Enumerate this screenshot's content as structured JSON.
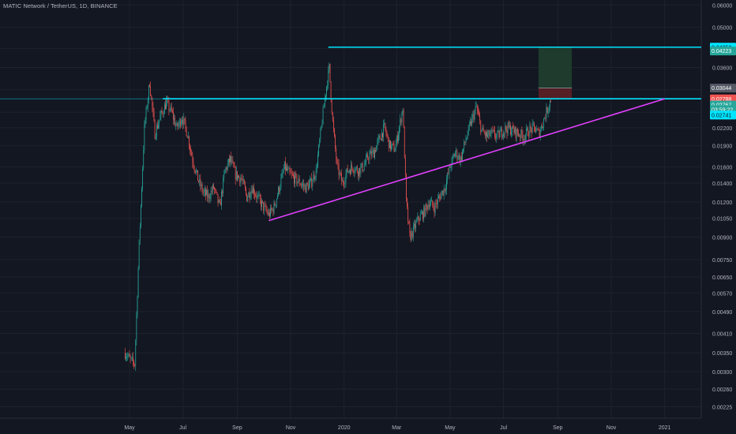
{
  "header": {
    "title": "MATIC Network / TetherUS, 1D, BINANCE"
  },
  "colors": {
    "background": "#131722",
    "grid": "#1e222d",
    "axis_text": "#b2b5be",
    "up": "#26a69a",
    "down": "#ef5350",
    "cyan_line": "#00e5ff",
    "magenta_line": "#e040fb",
    "target_zone": "#1f3d2e",
    "stop_zone": "#5a1f26"
  },
  "chart_data": {
    "type": "candlestick",
    "title": "MATIC Network / TetherUS, 1D, BINANCE",
    "scale": "log",
    "grid": true,
    "x_tick_labels": [
      "May",
      "Jul",
      "Sep",
      "Nov",
      "2020",
      "Mar",
      "May",
      "Jul",
      "Sep",
      "Nov",
      "2021"
    ],
    "y_tick_labels": [
      "0.06000",
      "0.05000",
      "0.04200",
      "0.03600",
      "0.03000",
      "0.02500",
      "0.02200",
      "0.01900",
      "0.01600",
      "0.01400",
      "0.01200",
      "0.01050",
      "0.00900",
      "0.00750",
      "0.00650",
      "0.00570",
      "0.00490",
      "0.00410",
      "0.00350",
      "0.00300",
      "0.00260",
      "0.00225"
    ],
    "y_ticks": [
      0.06,
      0.05,
      0.042,
      0.036,
      0.03,
      0.025,
      0.022,
      0.019,
      0.016,
      0.014,
      0.012,
      0.0105,
      0.009,
      0.0075,
      0.0065,
      0.0057,
      0.0049,
      0.0041,
      0.0035,
      0.003,
      0.0026,
      0.00225
    ],
    "ylim": [
      0.00205,
      0.0625
    ],
    "x_range": [
      "2019-04-22",
      "2021-02-28"
    ],
    "price_path": [
      [
        "2019-04-26",
        0.0035
      ],
      [
        "2019-05-02",
        0.0033
      ],
      [
        "2019-05-07",
        0.0032
      ],
      [
        "2019-05-12",
        0.0085
      ],
      [
        "2019-05-18",
        0.022
      ],
      [
        "2019-05-24",
        0.032
      ],
      [
        "2019-05-30",
        0.021
      ],
      [
        "2019-06-05",
        0.024
      ],
      [
        "2019-06-12",
        0.027
      ],
      [
        "2019-06-18",
        0.025
      ],
      [
        "2019-06-24",
        0.022
      ],
      [
        "2019-06-30",
        0.024
      ],
      [
        "2019-07-06",
        0.021
      ],
      [
        "2019-07-12",
        0.017
      ],
      [
        "2019-07-18",
        0.0145
      ],
      [
        "2019-07-24",
        0.013
      ],
      [
        "2019-07-30",
        0.0125
      ],
      [
        "2019-08-05",
        0.0135
      ],
      [
        "2019-08-12",
        0.0115
      ],
      [
        "2019-08-18",
        0.0155
      ],
      [
        "2019-08-24",
        0.017
      ],
      [
        "2019-08-30",
        0.015
      ],
      [
        "2019-09-06",
        0.0145
      ],
      [
        "2019-09-12",
        0.0125
      ],
      [
        "2019-09-18",
        0.0135
      ],
      [
        "2019-09-24",
        0.0125
      ],
      [
        "2019-10-01",
        0.0115
      ],
      [
        "2019-10-07",
        0.0108
      ],
      [
        "2019-10-13",
        0.0115
      ],
      [
        "2019-10-19",
        0.0135
      ],
      [
        "2019-10-25",
        0.016
      ],
      [
        "2019-10-31",
        0.015
      ],
      [
        "2019-11-06",
        0.0145
      ],
      [
        "2019-11-12",
        0.014
      ],
      [
        "2019-11-18",
        0.0135
      ],
      [
        "2019-11-24",
        0.014
      ],
      [
        "2019-11-30",
        0.0155
      ],
      [
        "2019-12-06",
        0.022
      ],
      [
        "2019-12-10",
        0.028
      ],
      [
        "2019-12-15",
        0.036
      ],
      [
        "2019-12-19",
        0.023
      ],
      [
        "2019-12-24",
        0.016
      ],
      [
        "2019-12-30",
        0.014
      ],
      [
        "2020-01-05",
        0.0155
      ],
      [
        "2020-01-11",
        0.016
      ],
      [
        "2020-01-17",
        0.0155
      ],
      [
        "2020-01-23",
        0.016
      ],
      [
        "2020-01-29",
        0.0175
      ],
      [
        "2020-02-04",
        0.018
      ],
      [
        "2020-02-10",
        0.02
      ],
      [
        "2020-02-16",
        0.022
      ],
      [
        "2020-02-22",
        0.019
      ],
      [
        "2020-02-28",
        0.0185
      ],
      [
        "2020-03-04",
        0.022
      ],
      [
        "2020-03-08",
        0.026
      ],
      [
        "2020-03-12",
        0.012
      ],
      [
        "2020-03-16",
        0.009
      ],
      [
        "2020-03-20",
        0.0095
      ],
      [
        "2020-03-26",
        0.0105
      ],
      [
        "2020-04-01",
        0.011
      ],
      [
        "2020-04-07",
        0.012
      ],
      [
        "2020-04-13",
        0.0115
      ],
      [
        "2020-04-19",
        0.0125
      ],
      [
        "2020-04-25",
        0.0135
      ],
      [
        "2020-05-01",
        0.016
      ],
      [
        "2020-05-07",
        0.018
      ],
      [
        "2020-05-13",
        0.017
      ],
      [
        "2020-05-19",
        0.02
      ],
      [
        "2020-05-25",
        0.023
      ],
      [
        "2020-05-31",
        0.026
      ],
      [
        "2020-06-06",
        0.0215
      ],
      [
        "2020-06-12",
        0.0205
      ],
      [
        "2020-06-18",
        0.021
      ],
      [
        "2020-06-24",
        0.0205
      ],
      [
        "2020-06-30",
        0.0215
      ],
      [
        "2020-07-06",
        0.022
      ],
      [
        "2020-07-12",
        0.0215
      ],
      [
        "2020-07-18",
        0.021
      ],
      [
        "2020-07-24",
        0.0205
      ],
      [
        "2020-07-30",
        0.0215
      ],
      [
        "2020-08-05",
        0.022
      ],
      [
        "2020-08-10",
        0.021
      ],
      [
        "2020-08-14",
        0.0225
      ],
      [
        "2020-08-18",
        0.0245
      ],
      [
        "2020-08-22",
        0.0268
      ],
      [
        "2020-08-24",
        0.0279
      ]
    ],
    "series": [
      {
        "name": "",
        "kind": "horizontal",
        "value": 0.04252,
        "x_start": "2019-12-14",
        "x_end": "2021-02-28",
        "color": "#00e5ff"
      },
      {
        "name": "",
        "kind": "horizontal",
        "value": 0.02788,
        "x_start": "2019-06-08",
        "x_end": "2021-02-28",
        "color": "#00e5ff"
      },
      {
        "name": "",
        "kind": "trendline",
        "points": [
          [
            "2019-10-07",
            0.0103
          ],
          [
            "2021-01-01",
            0.02788
          ]
        ],
        "color": "#e040fb"
      }
    ],
    "position_zone": {
      "x_start": "2020-08-10",
      "x_end": "2020-09-17",
      "entry": 0.02788,
      "target": 0.04252,
      "stop": 0.03044
    },
    "price_labels": [
      {
        "value": "0.04252",
        "level": 0.04252,
        "color": "#00e5ff",
        "text_color": "#131722"
      },
      {
        "value": "0.04223",
        "level": 0.0412,
        "color": "#26a69a",
        "text_color": "#ffffff"
      },
      {
        "value": "0.03044",
        "level": 0.03044,
        "color": "#555a66",
        "text_color": "#ffffff"
      },
      {
        "value": "0.02788",
        "level": 0.02788,
        "color": "#ef5350",
        "text_color": "#ffffff"
      },
      {
        "value": "0.02767",
        "level": 0.0265,
        "color": "#26a69a",
        "text_color": "#ffffff"
      },
      {
        "value": "03:59:22",
        "level": 0.0255,
        "color": "#26a69a",
        "text_color": "#ffffff"
      },
      {
        "value": "0.02741",
        "level": 0.0244,
        "color": "#00e5ff",
        "text_color": "#131722"
      }
    ]
  }
}
